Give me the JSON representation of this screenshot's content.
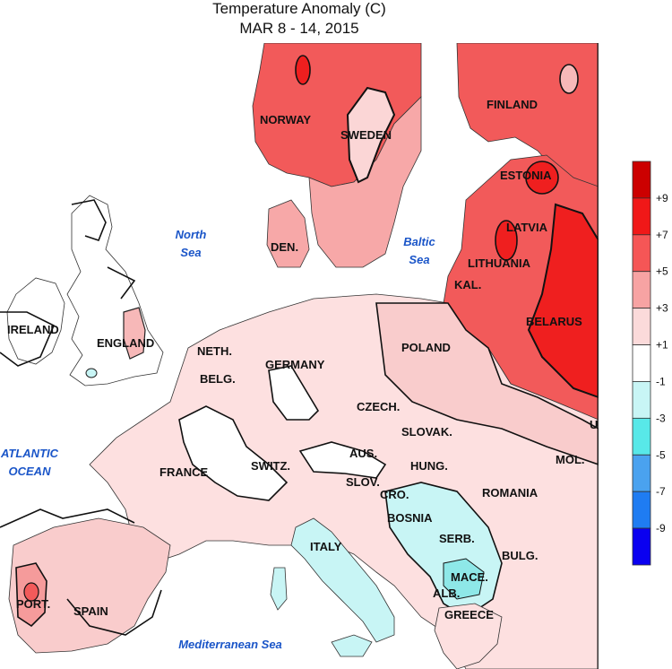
{
  "title": "Temperature Anomaly (C)",
  "subtitle": "MAR 8 - 14, 2015",
  "countries": [
    {
      "id": "norway",
      "label": "NORWAY"
    },
    {
      "id": "sweden",
      "label": "SWEDEN"
    },
    {
      "id": "finland",
      "label": "FINLAND"
    },
    {
      "id": "estonia",
      "label": "ESTONIA"
    },
    {
      "id": "latvia",
      "label": "LATVIA"
    },
    {
      "id": "lithuania",
      "label": "LITHUANIA"
    },
    {
      "id": "kal",
      "label": "KAL."
    },
    {
      "id": "belarus",
      "label": "BELARUS"
    },
    {
      "id": "den",
      "label": "DEN."
    },
    {
      "id": "ireland",
      "label": "IRELAND"
    },
    {
      "id": "england",
      "label": "ENGLAND"
    },
    {
      "id": "neth",
      "label": "NETH."
    },
    {
      "id": "belg",
      "label": "BELG."
    },
    {
      "id": "germany",
      "label": "GERMANY"
    },
    {
      "id": "poland",
      "label": "POLAND"
    },
    {
      "id": "czech",
      "label": "CZECH."
    },
    {
      "id": "slovak",
      "label": "SLOVAK."
    },
    {
      "id": "france",
      "label": "FRANCE"
    },
    {
      "id": "switz",
      "label": "SWITZ."
    },
    {
      "id": "aus",
      "label": "AUS."
    },
    {
      "id": "hung",
      "label": "HUNG."
    },
    {
      "id": "slov",
      "label": "SLOV."
    },
    {
      "id": "cro",
      "label": "CRO."
    },
    {
      "id": "bosnia",
      "label": "BOSNIA"
    },
    {
      "id": "romania",
      "label": "ROMANIA"
    },
    {
      "id": "mol",
      "label": "MOL."
    },
    {
      "id": "serb",
      "label": "SERB."
    },
    {
      "id": "bulg",
      "label": "BULG."
    },
    {
      "id": "mace",
      "label": "MACE."
    },
    {
      "id": "alb",
      "label": "ALB."
    },
    {
      "id": "greece",
      "label": "GREECE"
    },
    {
      "id": "italy",
      "label": "ITALY"
    },
    {
      "id": "port",
      "label": "PORT."
    },
    {
      "id": "spain",
      "label": "SPAIN"
    },
    {
      "id": "uk",
      "label": "UK"
    }
  ],
  "seas": [
    {
      "id": "north-sea",
      "lines": [
        "North",
        "Sea"
      ]
    },
    {
      "id": "baltic-sea",
      "lines": [
        "Baltic",
        "Sea"
      ]
    },
    {
      "id": "atlantic-ocean",
      "lines": [
        "ATLANTIC",
        "OCEAN"
      ]
    },
    {
      "id": "mediterranean-sea",
      "lines": [
        "Mediterranean Sea"
      ]
    }
  ],
  "legend": {
    "ticks": [
      "+9",
      "+7",
      "+5",
      "+3",
      "+1",
      "-1",
      "-3",
      "-5",
      "-7",
      "-9"
    ],
    "colors": [
      "#cc0000",
      "#f01818",
      "#f55656",
      "#f7a3a3",
      "#fbdada",
      "#ffffff",
      "#c8f5f5",
      "#58e8e8",
      "#4aa2ef",
      "#1f7cf2",
      "#0a00f0"
    ]
  },
  "palette": {
    "water": "#ffffff",
    "land_neutral": "#fde8e8",
    "warm_1": "#f9cccc",
    "warm_3": "#f59b9b",
    "warm_5": "#f25a5a",
    "warm_7": "#ef1f1f",
    "cool_1": "#c8f5f5"
  }
}
